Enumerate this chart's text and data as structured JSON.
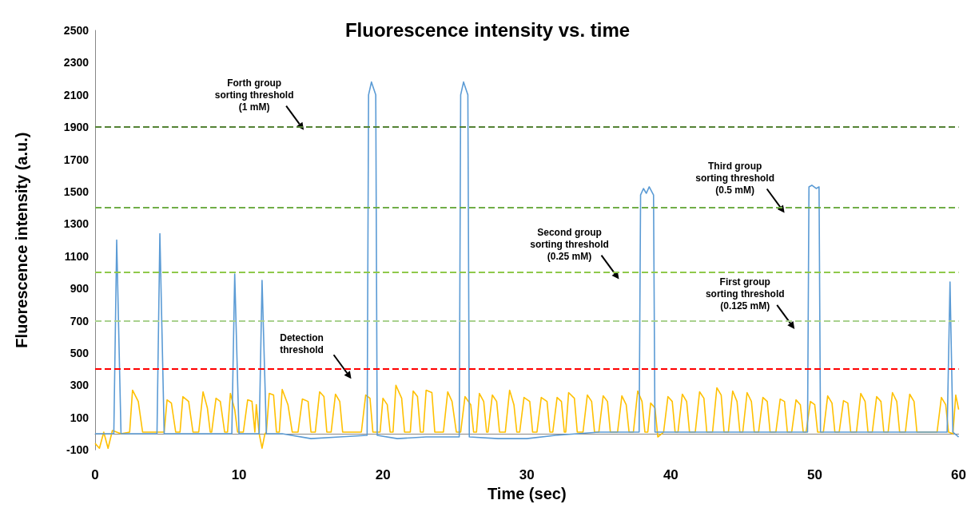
{
  "chart_data": {
    "type": "line",
    "title": "Fluorescence intensity vs. time",
    "xlabel": "Time (sec)",
    "ylabel": "Fluorescence intensity (a.u.)",
    "xlim": [
      0,
      60
    ],
    "xticks": [
      0,
      10,
      20,
      30,
      40,
      50,
      60
    ],
    "ylim": [
      -100,
      2500
    ],
    "yticks": [
      -100,
      100,
      300,
      500,
      700,
      900,
      1100,
      1300,
      1500,
      1700,
      1900,
      2100,
      2300,
      2500
    ],
    "grid": false,
    "marker": "none",
    "line_style": "solid",
    "series": [
      {
        "color": "#ffc000",
        "x": [
          0,
          0.3,
          0.6,
          0.9,
          1.2,
          1.8,
          2.4,
          2.6,
          3.0,
          3.3,
          4.8,
          5.0,
          5.3,
          5.6,
          5.9,
          6.1,
          6.5,
          6.8,
          7.2,
          7.5,
          7.8,
          8.0,
          8.1,
          8.4,
          8.7,
          9.0,
          9.2,
          9.4,
          9.7,
          9.9,
          10.3,
          10.6,
          10.9,
          11.1,
          11.2,
          11.4,
          11.6,
          11.8,
          11.9,
          12.1,
          12.4,
          12.6,
          12.8,
          13.0,
          13.4,
          13.7,
          14.1,
          14.4,
          14.8,
          15.0,
          15.3,
          15.6,
          15.9,
          16.1,
          16.4,
          16.7,
          17.0,
          17.2,
          18.5,
          18.8,
          19.1,
          19.3,
          19.8,
          20.0,
          20.3,
          20.5,
          20.7,
          20.9,
          21.3,
          21.5,
          21.9,
          22.1,
          22.4,
          22.6,
          22.8,
          23.0,
          23.4,
          23.6,
          24.2,
          24.5,
          24.8,
          25.1,
          25.4,
          25.7,
          26.1,
          26.3,
          26.5,
          26.7,
          27.0,
          27.2,
          27.3,
          27.6,
          27.9,
          28.1,
          28.5,
          28.8,
          29.1,
          29.3,
          29.5,
          29.8,
          30.2,
          30.4,
          30.7,
          31.0,
          31.4,
          31.6,
          31.8,
          32.1,
          32.4,
          32.6,
          32.7,
          32.9,
          33.3,
          33.5,
          33.9,
          34.2,
          34.5,
          34.7,
          35.0,
          35.3,
          35.6,
          35.8,
          36.3,
          36.6,
          36.9,
          37.1,
          37.4,
          37.7,
          38.0,
          38.2,
          38.4,
          38.6,
          38.9,
          39.1,
          39.5,
          39.8,
          40.1,
          40.3,
          40.5,
          40.8,
          41.1,
          41.3,
          41.7,
          42.0,
          42.3,
          42.5,
          42.9,
          43.2,
          43.5,
          43.7,
          44.0,
          44.3,
          44.6,
          44.8,
          45.0,
          45.3,
          45.6,
          45.8,
          46.1,
          46.4,
          46.7,
          46.9,
          47.3,
          47.6,
          47.9,
          48.1,
          48.4,
          48.7,
          49.0,
          49.2,
          49.4,
          49.7,
          50.0,
          50.2,
          50.6,
          50.9,
          51.2,
          51.4,
          51.7,
          52.0,
          52.3,
          52.5,
          52.9,
          53.2,
          53.5,
          53.7,
          54.0,
          54.3,
          54.6,
          54.8,
          55.1,
          55.4,
          55.7,
          55.9,
          56.3,
          56.6,
          56.9,
          57.1,
          58.5,
          58.8,
          59.1,
          59.3,
          59.6,
          59.8,
          60
        ],
        "values": [
          -60,
          -90,
          10,
          -90,
          20,
          0,
          10,
          270,
          200,
          10,
          10,
          210,
          190,
          10,
          10,
          230,
          200,
          10,
          10,
          260,
          160,
          10,
          10,
          220,
          200,
          10,
          10,
          250,
          150,
          10,
          10,
          210,
          200,
          10,
          180,
          0,
          -90,
          0,
          10,
          250,
          240,
          10,
          10,
          275,
          180,
          10,
          10,
          215,
          200,
          10,
          10,
          260,
          230,
          10,
          10,
          245,
          200,
          10,
          10,
          240,
          220,
          10,
          10,
          220,
          180,
          10,
          10,
          300,
          220,
          10,
          10,
          265,
          230,
          10,
          10,
          270,
          255,
          10,
          10,
          260,
          200,
          10,
          10,
          230,
          180,
          10,
          10,
          250,
          200,
          10,
          10,
          240,
          200,
          10,
          10,
          270,
          180,
          10,
          10,
          225,
          200,
          10,
          10,
          225,
          200,
          10,
          10,
          225,
          200,
          10,
          10,
          255,
          220,
          10,
          10,
          240,
          200,
          10,
          10,
          235,
          200,
          10,
          10,
          235,
          180,
          10,
          10,
          265,
          200,
          10,
          10,
          190,
          160,
          -20,
          10,
          230,
          200,
          10,
          10,
          245,
          200,
          10,
          10,
          260,
          220,
          10,
          10,
          285,
          240,
          10,
          10,
          265,
          200,
          10,
          10,
          255,
          200,
          10,
          10,
          225,
          200,
          10,
          10,
          215,
          200,
          10,
          10,
          210,
          180,
          10,
          10,
          200,
          180,
          10,
          10,
          235,
          190,
          10,
          10,
          205,
          190,
          10,
          10,
          250,
          200,
          10,
          10,
          230,
          200,
          10,
          10,
          255,
          200,
          10,
          10,
          245,
          200,
          10,
          10,
          225,
          180,
          10,
          0,
          240,
          150
        ]
      },
      {
        "color": "#5b9bd5",
        "x": [
          0,
          1.3,
          1.5,
          1.8,
          4.3,
          4.5,
          4.8,
          9.5,
          9.7,
          10.0,
          11.4,
          11.6,
          11.9,
          13,
          15,
          17,
          18.9,
          19.0,
          19.2,
          19.5,
          19.6,
          21,
          23,
          25.3,
          25.4,
          25.6,
          25.9,
          26.0,
          28,
          30,
          32,
          35,
          37.8,
          37.9,
          38.1,
          38.3,
          38.5,
          38.8,
          38.9,
          42,
          46,
          49.5,
          49.6,
          49.8,
          50.1,
          50.3,
          50.4,
          55,
          59.2,
          59.4,
          59.6,
          60
        ],
        "values": [
          0,
          0,
          1200,
          0,
          0,
          1240,
          0,
          0,
          990,
          0,
          0,
          950,
          0,
          0,
          -30,
          -20,
          -10,
          2100,
          2180,
          2100,
          -10,
          -30,
          -20,
          -20,
          2100,
          2180,
          2100,
          -20,
          -30,
          -30,
          -10,
          10,
          10,
          1480,
          1520,
          1490,
          1530,
          1480,
          10,
          10,
          10,
          10,
          1530,
          1540,
          1520,
          1530,
          10,
          10,
          10,
          940,
          10,
          -20
        ]
      }
    ],
    "ref_lines": [
      {
        "axis": "y",
        "value": 1900,
        "color": "#548235",
        "line_style": "dashed"
      },
      {
        "axis": "y",
        "value": 1400,
        "color": "#70ad47",
        "line_style": "dashed"
      },
      {
        "axis": "y",
        "value": 1000,
        "color": "#8fc94a",
        "line_style": "dashed"
      },
      {
        "axis": "y",
        "value": 700,
        "color": "#a9d18e",
        "line_style": "dashed"
      },
      {
        "axis": "y",
        "value": 400,
        "color": "#ff0000",
        "line_style": "dashed"
      }
    ],
    "annotations": [
      {
        "text": "Forth group\nsorting threshold\n(1 mM)",
        "x": 14.5,
        "y": 1900
      },
      {
        "text": "Second group\nsorting threshold\n(0.25 mM)",
        "x": 36.4,
        "y": 1000
      },
      {
        "text": "Third group\nsorting threshold\n(0.5 mM)",
        "x": 47.9,
        "y": 1400
      },
      {
        "text": "First group\nsorting threshold\n(0.125 mM)",
        "x": 48.6,
        "y": 700
      },
      {
        "text": "Detection\nthreshold",
        "x": 17.8,
        "y": 400
      }
    ]
  }
}
